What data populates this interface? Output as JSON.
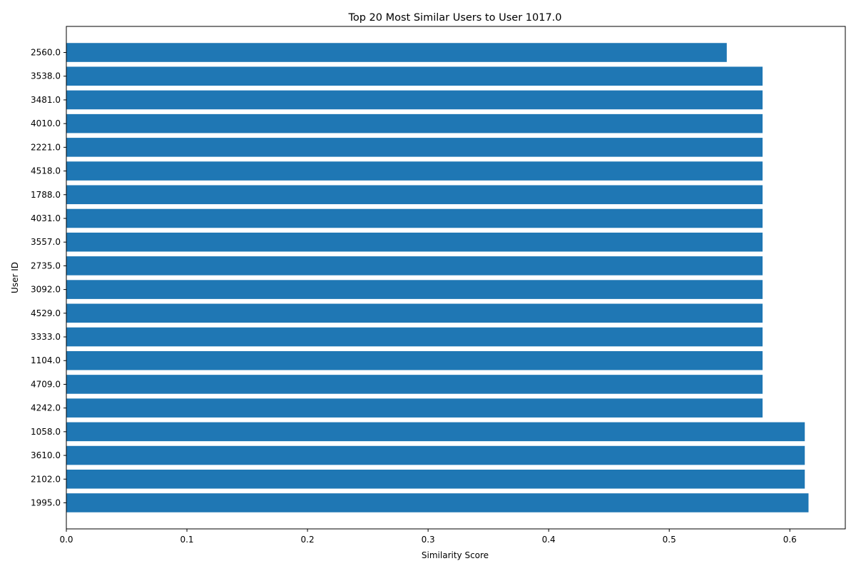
{
  "chart_data": {
    "type": "bar",
    "orientation": "horizontal",
    "title": "Top 20 Most Similar Users to User 1017.0",
    "xlabel": "Similarity Score",
    "ylabel": "User ID",
    "categories": [
      "1995.0",
      "2102.0",
      "3610.0",
      "1058.0",
      "4242.0",
      "4709.0",
      "1104.0",
      "3333.0",
      "4529.0",
      "3092.0",
      "2735.0",
      "3557.0",
      "4031.0",
      "1788.0",
      "4518.0",
      "2221.0",
      "4010.0",
      "3481.0",
      "3538.0",
      "2560.0"
    ],
    "values": [
      0.6155,
      0.6124,
      0.6124,
      0.6124,
      0.5774,
      0.5774,
      0.5774,
      0.5774,
      0.5774,
      0.5774,
      0.5774,
      0.5774,
      0.5774,
      0.5774,
      0.5774,
      0.5774,
      0.5774,
      0.5774,
      0.5774,
      0.5477
    ],
    "xlim": [
      0,
      0.646
    ],
    "xticks": [
      0.0,
      0.1,
      0.2,
      0.3,
      0.4,
      0.5,
      0.6
    ],
    "xtick_labels": [
      "0.0",
      "0.1",
      "0.2",
      "0.3",
      "0.4",
      "0.5",
      "0.6"
    ],
    "bar_color": "#1f77b4",
    "grid": false,
    "legend": "none"
  }
}
